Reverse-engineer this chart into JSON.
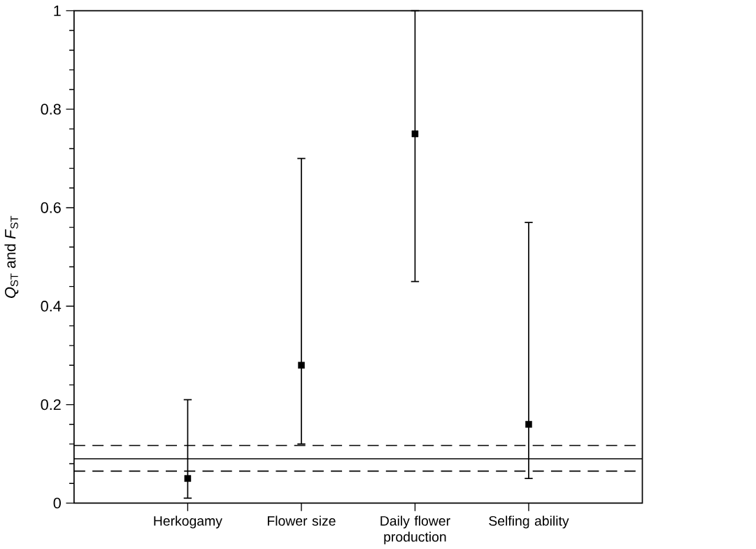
{
  "chart_data": {
    "type": "scatter",
    "ylabel": "*Q*$_{ST}$ and *F*$_{ST}$",
    "categories": [
      "Herkogamy",
      "Flower size",
      "Daily flower production",
      "Selfing ability"
    ],
    "values": [
      0.05,
      0.28,
      0.75,
      0.16
    ],
    "errors": [
      [
        0.01,
        0.21
      ],
      [
        0.12,
        0.7
      ],
      [
        0.45,
        1.0
      ],
      [
        0.05,
        0.57
      ]
    ],
    "color": "#000000",
    "marker": "square",
    "ylim": [
      0,
      1
    ],
    "yticks": [
      0,
      {
        "value": 0.04,
        "label": null
      },
      {
        "value": 0.08,
        "label": null
      },
      {
        "value": 0.12,
        "label": null
      },
      {
        "value": 0.16,
        "label": null
      },
      {
        "value": 0.2,
        "label": "0.2"
      },
      {
        "value": 0.24,
        "label": null
      },
      {
        "value": 0.28,
        "label": null
      },
      {
        "value": 0.32,
        "label": null
      },
      {
        "value": 0.36,
        "label": null
      },
      {
        "value": 0.4,
        "label": "0.4"
      },
      {
        "value": 0.44,
        "label": null
      },
      {
        "value": 0.48,
        "label": null
      },
      {
        "value": 0.52,
        "label": null
      },
      {
        "value": 0.56,
        "label": null
      },
      {
        "value": 0.6,
        "label": "0.6"
      },
      {
        "value": 0.64,
        "label": null
      },
      {
        "value": 0.68,
        "label": null
      },
      {
        "value": 0.72,
        "label": null
      },
      {
        "value": 0.76,
        "label": null
      },
      {
        "value": 0.8,
        "label": "0.8"
      },
      {
        "value": 0.84,
        "label": null
      },
      {
        "value": 0.88,
        "label": null
      },
      {
        "value": 0.92,
        "label": null
      },
      {
        "value": 0.96,
        "label": null
      },
      1
    ],
    "ref_lines": [
      {
        "axis": "y",
        "value": 0.117,
        "line_style": "dashed",
        "color": "#000000"
      },
      {
        "axis": "y",
        "value": 0.09,
        "line_style": "solid",
        "color": "#000000"
      },
      {
        "axis": "y",
        "value": 0.065,
        "line_style": "dashed",
        "color": "#000000"
      }
    ]
  }
}
